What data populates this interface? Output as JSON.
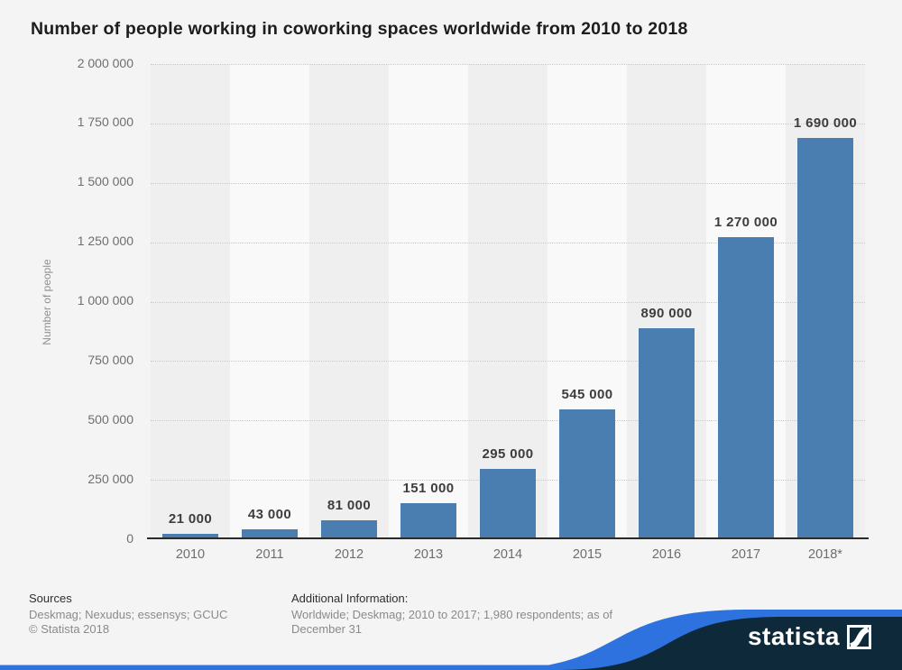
{
  "title": "Number of people working in coworking spaces worldwide from 2010 to 2018",
  "chart_data": {
    "type": "bar",
    "categories": [
      "2010",
      "2011",
      "2012",
      "2013",
      "2014",
      "2015",
      "2016",
      "2017",
      "2018*"
    ],
    "values": [
      21000,
      43000,
      81000,
      151000,
      295000,
      545000,
      890000,
      1270000,
      1690000
    ],
    "value_labels": [
      "21 000",
      "43 000",
      "81 000",
      "151 000",
      "295 000",
      "545 000",
      "890 000",
      "1 270 000",
      "1 690 000"
    ],
    "title": "Number of people working in coworking spaces worldwide from 2010 to 2018",
    "xlabel": "",
    "ylabel": "Number of people",
    "ylim": [
      0,
      2000000
    ],
    "ytick_step": 250000,
    "ytick_labels": [
      "0",
      "250 000",
      "500 000",
      "750 000",
      "1 000 000",
      "1 250 000",
      "1 500 000",
      "1 750 000",
      "2 000 000"
    ],
    "grid": "horizontal-dotted",
    "legend": "none",
    "bar_color": "#4A7EB0",
    "plot_band_colors": [
      "#efeff0",
      "#f9f9f9"
    ]
  },
  "footer": {
    "sources_heading": "Sources",
    "sources_line": "Deskmag; Nexudus; essensys; GCUC",
    "copyright": "© Statista 2018",
    "additional_heading": "Additional Information:",
    "additional_line1": "Worldwide; Deskmag; 2010 to 2017; 1,980 respondents; as of",
    "additional_line2": "December 31"
  },
  "branding": {
    "logo_text": "statista",
    "navy_color": "#0E2A3A",
    "blue_color": "#2D72DE"
  }
}
